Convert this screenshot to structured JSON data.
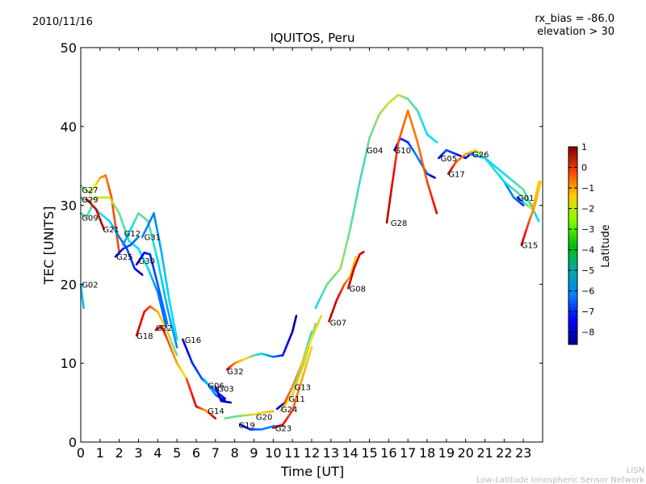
{
  "header": {
    "date": "2010/11/16",
    "rx_bias": "rx_bias = -86.0",
    "elevation": "elevation > 30"
  },
  "footer": {
    "org_short": "LISN",
    "org_long": "Low-Latitude Ionospheric Sensor Network"
  },
  "chart_data": {
    "type": "line",
    "title": "IQUITOS, Peru",
    "xlabel": "Time [UT]",
    "ylabel": "TEC [UNITS]",
    "xlim": [
      0,
      24
    ],
    "ylim": [
      0,
      50
    ],
    "xticks": [
      "0",
      "1",
      "2",
      "3",
      "4",
      "5",
      "6",
      "7",
      "8",
      "9",
      "10",
      "11",
      "12",
      "13",
      "14",
      "15",
      "16",
      "17",
      "18",
      "19",
      "20",
      "21",
      "22",
      "23"
    ],
    "yticks": [
      "0",
      "10",
      "20",
      "30",
      "40",
      "50"
    ],
    "grid": false,
    "colorbar": {
      "label": "Latitude",
      "range": [
        -8.6,
        1
      ],
      "ticks": [
        "1",
        "0",
        "−1",
        "−2",
        "−3",
        "−4",
        "−5",
        "−6",
        "−7",
        "−8"
      ],
      "tick_values": [
        1,
        0,
        -1,
        -2,
        -3,
        -4,
        -5,
        -6,
        -7,
        -8
      ],
      "colormap": "jet"
    },
    "series": [
      {
        "name": "G27",
        "label_at": [
          0.05,
          32
        ],
        "points": [
          [
            0,
            32.5,
            -4
          ],
          [
            0.5,
            31.5,
            -3.5
          ],
          [
            1,
            33.5,
            -2
          ],
          [
            1.3,
            33.8,
            -1.5
          ],
          [
            1.6,
            31,
            -1
          ],
          [
            2,
            24,
            -1
          ]
        ]
      },
      {
        "name": "G29",
        "label_at": [
          0.05,
          30.8
        ],
        "points": [
          [
            0,
            31,
            -4
          ],
          [
            0.4,
            30.5,
            -4.5
          ],
          [
            0.8,
            31,
            -3
          ],
          [
            1.5,
            31,
            -3
          ],
          [
            2,
            29,
            -4
          ],
          [
            2.5,
            25.5,
            -4.5
          ],
          [
            3,
            24.5,
            -5
          ],
          [
            3.5,
            22,
            -5
          ],
          [
            4,
            19,
            -6
          ],
          [
            4.5,
            14,
            -6.5
          ]
        ]
      },
      {
        "name": "G09",
        "label_at": [
          0.05,
          28.5
        ],
        "points": [
          [
            0,
            29,
            -4.5
          ],
          [
            0.3,
            28.5,
            -4
          ],
          [
            0.6,
            30,
            -4.5
          ],
          [
            1,
            29,
            -4.5
          ],
          [
            1.5,
            28,
            -5
          ],
          [
            2,
            26,
            -6
          ],
          [
            2.4,
            24.5,
            -6.5
          ],
          [
            2.8,
            22,
            -7
          ],
          [
            3.2,
            21.2,
            -8
          ]
        ]
      },
      {
        "name": "G21",
        "label_at": [
          1.15,
          27
        ],
        "points": [
          [
            0.3,
            30.8,
            0
          ],
          [
            0.8,
            29.5,
            0.3
          ],
          [
            1.2,
            27,
            0.5
          ]
        ]
      },
      {
        "name": "G02",
        "label_at": [
          0.05,
          20
        ],
        "points": [
          [
            0,
            20,
            -5
          ],
          [
            0.15,
            17,
            -5.5
          ]
        ]
      },
      {
        "name": "G12",
        "label_at": [
          2.25,
          26.5
        ],
        "points": [
          [
            2.2,
            25,
            -6
          ],
          [
            2.6,
            27,
            -5
          ],
          [
            3,
            29,
            -4
          ],
          [
            3.5,
            28,
            -4.2
          ],
          [
            4,
            23,
            -5
          ],
          [
            4.5,
            17,
            -5.5
          ],
          [
            5,
            12,
            -6
          ]
        ]
      },
      {
        "name": "G31",
        "label_at": [
          3.3,
          26
        ],
        "points": [
          [
            3.2,
            26,
            -6
          ],
          [
            3.8,
            29,
            -6
          ],
          [
            4.2,
            24,
            -5.5
          ],
          [
            4.6,
            18,
            -5
          ],
          [
            5,
            13,
            -5
          ]
        ]
      },
      {
        "name": "G25",
        "label_at": [
          1.85,
          23.5
        ],
        "points": [
          [
            1.8,
            23.5,
            -8
          ],
          [
            2.2,
            24.5,
            -7
          ],
          [
            2.6,
            25,
            -6.5
          ],
          [
            3,
            26,
            -6
          ]
        ]
      },
      {
        "name": "G30",
        "label_at": [
          3,
          23
        ],
        "points": [
          [
            2.9,
            22.5,
            -8.3
          ],
          [
            3.3,
            24,
            -7.5
          ],
          [
            3.6,
            23.8,
            -7
          ],
          [
            4,
            20,
            -6.5
          ],
          [
            4.5,
            15,
            -6
          ]
        ]
      },
      {
        "name": "G18",
        "label_at": [
          2.9,
          13.5
        ],
        "points": [
          [
            2.9,
            13.5,
            0.3
          ],
          [
            3.3,
            16.5,
            -0.2
          ],
          [
            3.6,
            17.2,
            -1
          ],
          [
            4,
            16.5,
            -2
          ],
          [
            4.5,
            14,
            -3
          ],
          [
            5,
            11,
            -4
          ]
        ]
      },
      {
        "name": "G22",
        "label_at": [
          3.9,
          14.5
        ],
        "points": [
          [
            3.9,
            14.2,
            0.3
          ],
          [
            4.2,
            14.7,
            0.2
          ],
          [
            4.5,
            13,
            -1
          ],
          [
            5,
            10,
            -2
          ],
          [
            5.5,
            8,
            -3
          ]
        ]
      },
      {
        "name": "G16",
        "label_at": [
          5.4,
          13
        ],
        "points": [
          [
            5.3,
            13,
            -8
          ],
          [
            5.8,
            10,
            -7
          ],
          [
            6.3,
            8,
            -6.5
          ],
          [
            7,
            6.5,
            -6
          ],
          [
            7.5,
            5.5,
            -7.5
          ]
        ]
      },
      {
        "name": "G32",
        "label_at": [
          7.6,
          9
        ],
        "points": [
          [
            7.6,
            9.2,
            0.2
          ],
          [
            8,
            10,
            -1.5
          ],
          [
            8.5,
            10.5,
            -2.5
          ],
          [
            9,
            11,
            -4
          ],
          [
            9.4,
            11.2,
            -5
          ],
          [
            10,
            10.8,
            -6
          ],
          [
            10.5,
            11,
            -7
          ],
          [
            11,
            14,
            -8
          ],
          [
            11.2,
            16,
            -8.4
          ]
        ]
      },
      {
        "name": "G06",
        "label_at": [
          6.6,
          7.2
        ],
        "points": [
          [
            6.4,
            8,
            -5
          ],
          [
            7,
            6,
            -6
          ],
          [
            7.5,
            5.2,
            -8
          ]
        ]
      },
      {
        "name": "G03",
        "label_at": [
          7.1,
          6.8
        ],
        "points": [
          [
            7,
            7,
            -8
          ],
          [
            7.3,
            5.2,
            -8
          ],
          [
            7.8,
            5,
            -8
          ]
        ]
      },
      {
        "name": "G14",
        "label_at": [
          6.6,
          4
        ],
        "points": [
          [
            5.5,
            8,
            -1
          ],
          [
            6,
            4.5,
            0.2
          ],
          [
            6.5,
            4,
            -2
          ],
          [
            7,
            3,
            0.5
          ]
        ]
      },
      {
        "name": "G19",
        "label_at": [
          8.2,
          2.2
        ],
        "points": [
          [
            8.3,
            2.2,
            -8
          ],
          [
            8.8,
            1.6,
            -7
          ],
          [
            9.4,
            1.6,
            -6
          ],
          [
            10,
            2,
            -6
          ],
          [
            10.5,
            2,
            -5
          ]
        ]
      },
      {
        "name": "G20",
        "label_at": [
          9.1,
          3.2
        ],
        "points": [
          [
            7.5,
            3,
            -4
          ],
          [
            8.2,
            3.3,
            -4
          ],
          [
            9,
            3.5,
            -3
          ],
          [
            9.6,
            3.8,
            -2.5
          ],
          [
            10,
            3.9,
            -2
          ]
        ]
      },
      {
        "name": "G23",
        "label_at": [
          10.1,
          1.8
        ],
        "points": [
          [
            10,
            1.8,
            0.5
          ],
          [
            10.5,
            2.2,
            0
          ],
          [
            11,
            4,
            -1
          ],
          [
            11.5,
            8,
            -2
          ],
          [
            12,
            12,
            -2.5
          ]
        ]
      },
      {
        "name": "G24",
        "label_at": [
          10.4,
          4.2
        ],
        "points": [
          [
            10.2,
            4.2,
            -8
          ],
          [
            10.6,
            5,
            -7
          ],
          [
            11,
            7,
            -6
          ],
          [
            11.5,
            10,
            -5
          ],
          [
            12,
            14,
            -4.5
          ]
        ]
      },
      {
        "name": "G11",
        "label_at": [
          10.8,
          5.5
        ],
        "points": [
          [
            10.4,
            4,
            -2
          ],
          [
            11,
            6,
            -3
          ],
          [
            11.6,
            10,
            -3.5
          ],
          [
            12.2,
            15,
            -3.8
          ]
        ]
      },
      {
        "name": "G13",
        "label_at": [
          11.1,
          7
        ],
        "points": [
          [
            10.6,
            5,
            -1
          ],
          [
            11.2,
            8,
            -2
          ],
          [
            11.8,
            12,
            -2.5
          ],
          [
            12.5,
            16,
            -3
          ]
        ]
      },
      {
        "name": "G07",
        "label_at": [
          12.95,
          15.2
        ],
        "points": [
          [
            12.9,
            15.3,
            0.5
          ],
          [
            13.3,
            18,
            0.2
          ],
          [
            13.7,
            20,
            -1
          ],
          [
            14,
            21,
            -2
          ],
          [
            14.3,
            23.5,
            -2.5
          ]
        ]
      },
      {
        "name": "G08",
        "label_at": [
          13.95,
          19.5
        ],
        "points": [
          [
            13.9,
            19.5,
            0.5
          ],
          [
            14.2,
            22,
            0.2
          ],
          [
            14.5,
            23.8,
            0.1
          ],
          [
            14.7,
            24.1,
            0.2
          ]
        ]
      },
      {
        "name": "G04",
        "label_at": [
          14.85,
          37
        ],
        "points": [
          [
            12.2,
            17,
            -5
          ],
          [
            12.8,
            20,
            -4
          ],
          [
            13.5,
            22,
            -3.5
          ],
          [
            14,
            27,
            -4
          ],
          [
            14.5,
            33,
            -4.5
          ],
          [
            15,
            38.5,
            -4
          ],
          [
            15.5,
            41.5,
            -3.5
          ],
          [
            16,
            43,
            -3
          ],
          [
            16.5,
            44,
            -3
          ],
          [
            17,
            43.5,
            -4
          ],
          [
            17.5,
            42,
            -4.5
          ],
          [
            18,
            39,
            -5
          ],
          [
            18.5,
            38,
            -5
          ]
        ]
      },
      {
        "name": "G10",
        "label_at": [
          16.3,
          37
        ],
        "points": [
          [
            16.3,
            37,
            -8
          ],
          [
            16.6,
            38.5,
            -7
          ],
          [
            17,
            38,
            -7
          ],
          [
            17.4,
            36.5,
            -6
          ],
          [
            18,
            34,
            -6.5
          ],
          [
            18.4,
            33.5,
            -8
          ]
        ]
      },
      {
        "name": "G28",
        "label_at": [
          16.1,
          27.8
        ],
        "points": [
          [
            15.9,
            27.8,
            0.5
          ],
          [
            16.2,
            33,
            0
          ],
          [
            16.5,
            38,
            -1
          ],
          [
            17,
            42,
            -1.5
          ],
          [
            17.5,
            38,
            -1.5
          ],
          [
            18,
            33,
            -1
          ],
          [
            18.5,
            29,
            0
          ]
        ]
      },
      {
        "name": "G05",
        "label_at": [
          18.7,
          36
        ],
        "points": [
          [
            18.6,
            36,
            -8
          ],
          [
            19,
            37,
            -6.5
          ],
          [
            19.5,
            36.5,
            -7
          ],
          [
            20,
            36,
            -8
          ],
          [
            20.5,
            37,
            -7
          ],
          [
            21,
            36,
            -6
          ],
          [
            22,
            33,
            -6
          ],
          [
            22.5,
            31,
            -6
          ],
          [
            23,
            30,
            -7
          ]
        ]
      },
      {
        "name": "G17",
        "label_at": [
          19.1,
          34
        ],
        "points": [
          [
            19.1,
            34,
            0.5
          ],
          [
            19.5,
            35.5,
            -1
          ],
          [
            20,
            36.5,
            -2
          ],
          [
            20.5,
            37,
            -2.5
          ],
          [
            21,
            36,
            -4
          ],
          [
            22,
            33,
            -5
          ],
          [
            23,
            31,
            -4
          ],
          [
            23.5,
            30,
            -3
          ]
        ]
      },
      {
        "name": "G26",
        "label_at": [
          20.35,
          36.5
        ],
        "points": [
          [
            20.2,
            36.5,
            -6
          ],
          [
            21,
            36,
            -5
          ],
          [
            22,
            34,
            -5
          ],
          [
            23,
            32,
            -4
          ],
          [
            23.8,
            28,
            -5
          ]
        ]
      },
      {
        "name": "G01",
        "label_at": [
          22.7,
          31
        ],
        "points": [
          [
            22.7,
            31,
            -8
          ],
          [
            23.2,
            30,
            -4
          ],
          [
            23.5,
            29.5,
            -2
          ],
          [
            23.8,
            33,
            -2.5
          ]
        ]
      },
      {
        "name": "G15",
        "label_at": [
          22.9,
          25
        ],
        "points": [
          [
            22.9,
            25,
            0.5
          ],
          [
            23.3,
            28,
            -1
          ],
          [
            23.6,
            30,
            -2
          ],
          [
            23.9,
            33,
            -2.5
          ]
        ]
      }
    ]
  }
}
